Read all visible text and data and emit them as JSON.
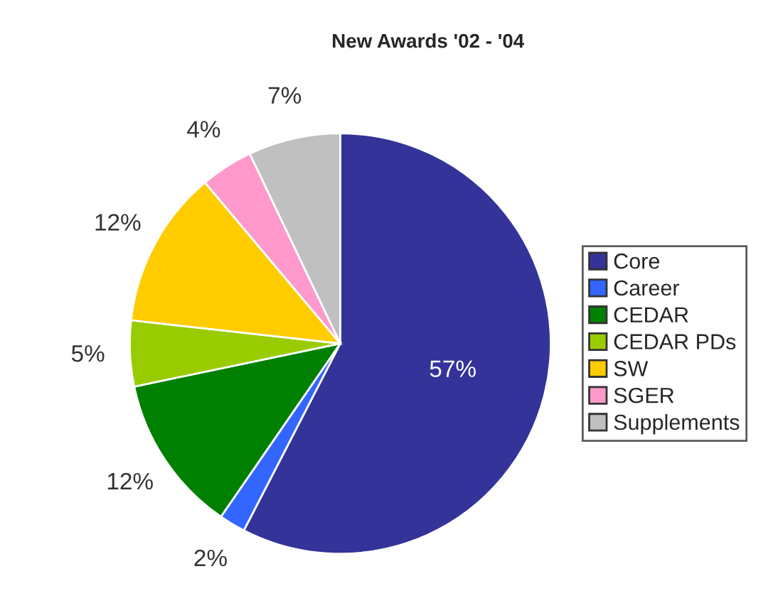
{
  "chart_data": {
    "type": "pie",
    "title": "New Awards '02 - '04",
    "categories": [
      "Core",
      "Career",
      "CEDAR",
      "CEDAR PDs",
      "SW",
      "SGER",
      "Supplements"
    ],
    "values": [
      57,
      2,
      12,
      5,
      12,
      4,
      7
    ],
    "colors": [
      "#333399",
      "#3366ff",
      "#008000",
      "#99cc00",
      "#ffcc00",
      "#ff99cc",
      "#c0c0c0"
    ],
    "value_labels": [
      "57%",
      "2%",
      "12%",
      "5%",
      "12%",
      "4%",
      "7%"
    ],
    "legend": "right"
  }
}
